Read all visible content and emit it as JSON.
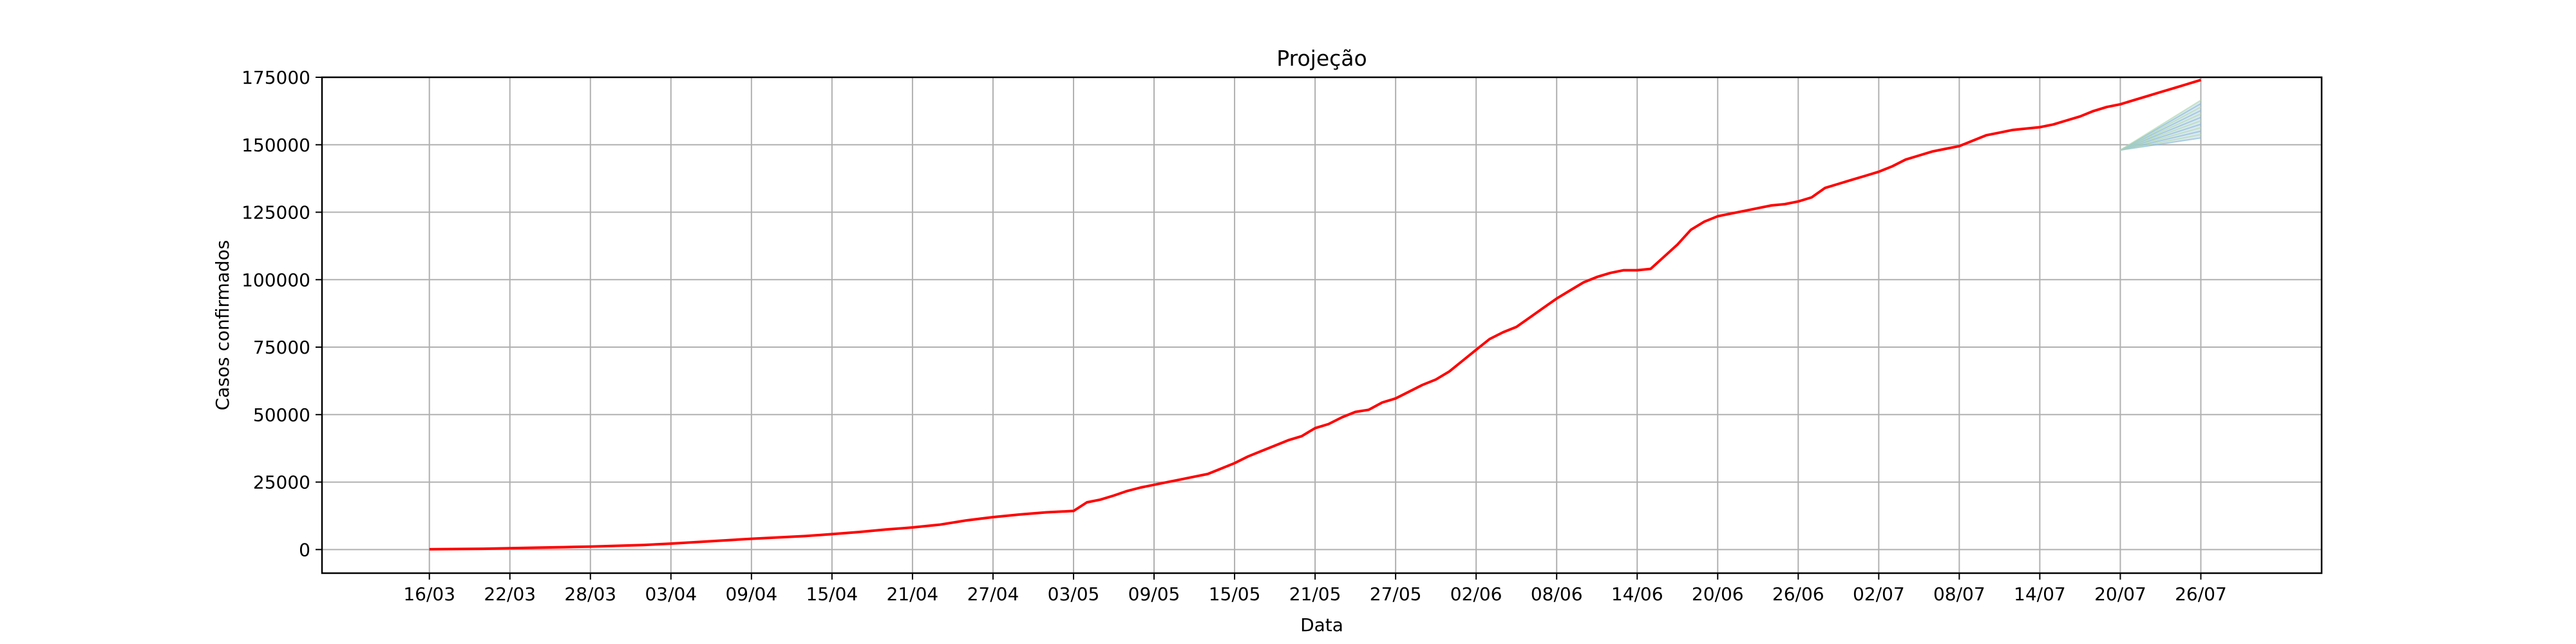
{
  "chart_data": {
    "type": "line",
    "title": "Projeção",
    "xlabel": "Data",
    "ylabel": "Casos confirmados",
    "grid": true,
    "legend": "none",
    "xlim": [
      -8,
      141
    ],
    "ylim": [
      -8750,
      175000
    ],
    "x_ticks": [
      {
        "day": 0,
        "label": "16/03"
      },
      {
        "day": 6,
        "label": "22/03"
      },
      {
        "day": 12,
        "label": "28/03"
      },
      {
        "day": 18,
        "label": "03/04"
      },
      {
        "day": 24,
        "label": "09/04"
      },
      {
        "day": 30,
        "label": "15/04"
      },
      {
        "day": 36,
        "label": "21/04"
      },
      {
        "day": 42,
        "label": "27/04"
      },
      {
        "day": 48,
        "label": "03/05"
      },
      {
        "day": 54,
        "label": "09/05"
      },
      {
        "day": 60,
        "label": "15/05"
      },
      {
        "day": 66,
        "label": "21/05"
      },
      {
        "day": 72,
        "label": "27/05"
      },
      {
        "day": 78,
        "label": "02/06"
      },
      {
        "day": 84,
        "label": "08/06"
      },
      {
        "day": 90,
        "label": "14/06"
      },
      {
        "day": 96,
        "label": "20/06"
      },
      {
        "day": 102,
        "label": "26/06"
      },
      {
        "day": 108,
        "label": "02/07"
      },
      {
        "day": 114,
        "label": "08/07"
      },
      {
        "day": 120,
        "label": "14/07"
      },
      {
        "day": 126,
        "label": "20/07"
      },
      {
        "day": 132,
        "label": "26/07"
      }
    ],
    "y_ticks": [
      0,
      25000,
      50000,
      75000,
      100000,
      125000,
      150000,
      175000
    ],
    "colors": {
      "main": "#ff0000",
      "band_a": "#8fbcd8",
      "band_b": "#b5dcb0",
      "grid": "#b0b0b0"
    },
    "series": [
      {
        "values": [
          [
            0,
            100
          ],
          [
            2,
            200
          ],
          [
            4,
            300
          ],
          [
            6,
            500
          ],
          [
            8,
            700
          ],
          [
            10,
            900
          ],
          [
            12,
            1100
          ],
          [
            14,
            1400
          ],
          [
            16,
            1700
          ],
          [
            18,
            2200
          ],
          [
            20,
            2800
          ],
          [
            22,
            3400
          ],
          [
            24,
            4000
          ],
          [
            26,
            4500
          ],
          [
            28,
            5000
          ],
          [
            30,
            5700
          ],
          [
            32,
            6500
          ],
          [
            34,
            7400
          ],
          [
            36,
            8200
          ],
          [
            38,
            9200
          ],
          [
            40,
            10800
          ],
          [
            42,
            12000
          ],
          [
            44,
            13000
          ],
          [
            46,
            13800
          ],
          [
            48,
            14300
          ],
          [
            49,
            17500
          ],
          [
            50,
            18500
          ],
          [
            51,
            20000
          ],
          [
            52,
            21700
          ],
          [
            53,
            23000
          ],
          [
            54,
            24000
          ],
          [
            55,
            25000
          ],
          [
            56,
            26000
          ],
          [
            57,
            27000
          ],
          [
            58,
            28000
          ],
          [
            59,
            30000
          ],
          [
            60,
            32000
          ],
          [
            61,
            34500
          ],
          [
            62,
            36500
          ],
          [
            63,
            38500
          ],
          [
            64,
            40500
          ],
          [
            65,
            42000
          ],
          [
            66,
            45000
          ],
          [
            67,
            46500
          ],
          [
            68,
            49000
          ],
          [
            69,
            51000
          ],
          [
            70,
            51800
          ],
          [
            71,
            54500
          ],
          [
            72,
            56000
          ],
          [
            73,
            58500
          ],
          [
            74,
            61000
          ],
          [
            75,
            63000
          ],
          [
            76,
            66000
          ],
          [
            77,
            70000
          ],
          [
            78,
            74000
          ],
          [
            79,
            78000
          ],
          [
            80,
            80500
          ],
          [
            81,
            82500
          ],
          [
            82,
            86000
          ],
          [
            83,
            89500
          ],
          [
            84,
            93000
          ],
          [
            85,
            96000
          ],
          [
            86,
            99000
          ],
          [
            87,
            101000
          ],
          [
            88,
            102500
          ],
          [
            89,
            103500
          ],
          [
            90,
            103500
          ],
          [
            91,
            104000
          ],
          [
            92,
            108500
          ],
          [
            93,
            113000
          ],
          [
            94,
            118500
          ],
          [
            95,
            121500
          ],
          [
            96,
            123500
          ],
          [
            97,
            124500
          ],
          [
            98,
            125500
          ],
          [
            99,
            126500
          ],
          [
            100,
            127500
          ],
          [
            101,
            128000
          ],
          [
            102,
            129000
          ],
          [
            103,
            130500
          ],
          [
            104,
            134000
          ],
          [
            105,
            135500
          ],
          [
            106,
            137000
          ],
          [
            107,
            138500
          ],
          [
            108,
            140000
          ],
          [
            109,
            142000
          ],
          [
            110,
            144500
          ],
          [
            111,
            146000
          ],
          [
            112,
            147500
          ],
          [
            113,
            148500
          ],
          [
            114,
            149500
          ],
          [
            115,
            151500
          ],
          [
            116,
            153500
          ],
          [
            117,
            154500
          ],
          [
            118,
            155500
          ],
          [
            119,
            156000
          ],
          [
            120,
            156500
          ],
          [
            121,
            157500
          ],
          [
            122,
            159000
          ],
          [
            123,
            160500
          ],
          [
            124,
            162500
          ],
          [
            125,
            164000
          ],
          [
            126,
            165000
          ],
          [
            127,
            166500
          ],
          [
            128,
            168000
          ],
          [
            129,
            169500
          ],
          [
            130,
            171000
          ],
          [
            131,
            172500
          ],
          [
            132,
            174000
          ]
        ]
      }
    ],
    "projection_band": {
      "x_start": 126,
      "x_end": 132,
      "start": 148000,
      "upper": 166500,
      "lower": 152500
    }
  }
}
